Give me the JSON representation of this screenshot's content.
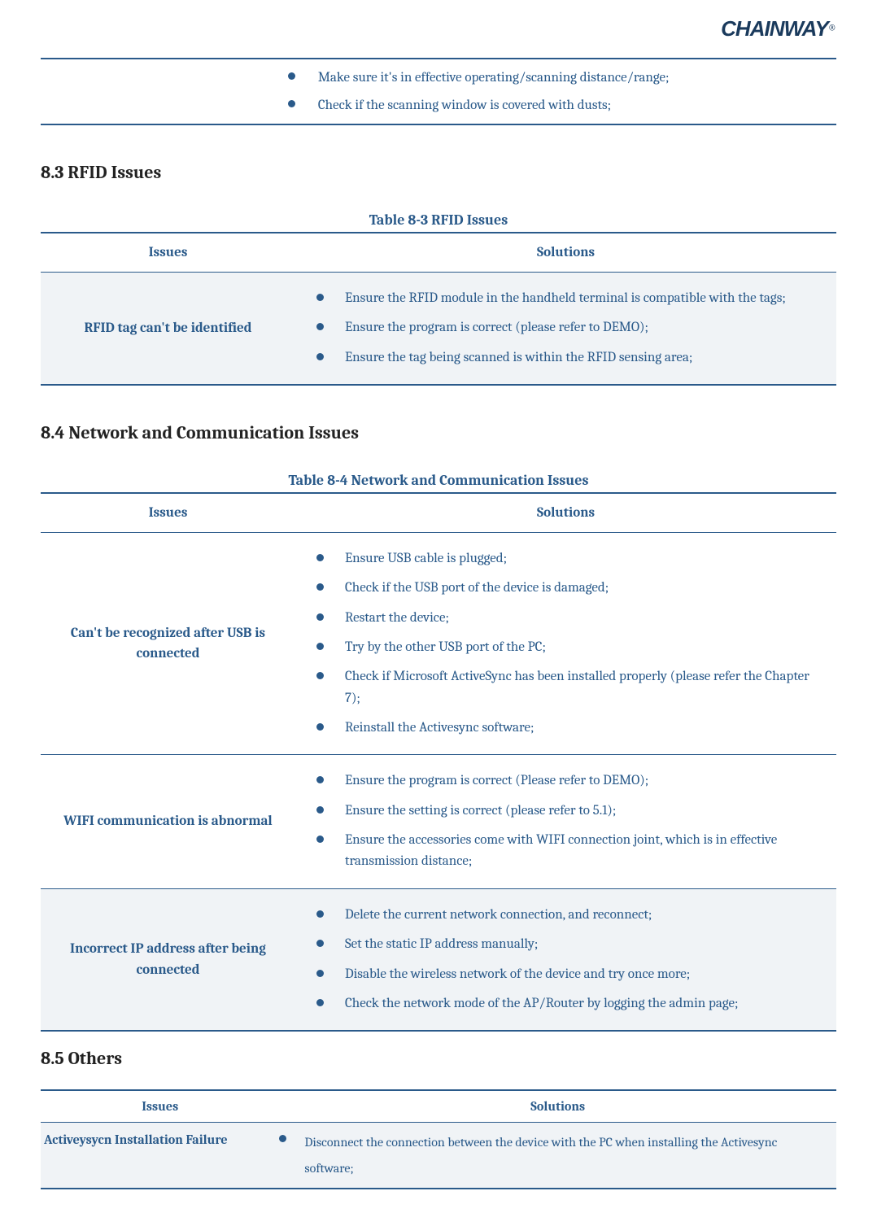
{
  "brand": {
    "name": "CHAINWAY",
    "registered": "®"
  },
  "top_table": {
    "solutions": [
      "Make sure it's in effective operating/scanning distance/range;",
      "Check if the scanning window is covered with dusts;"
    ]
  },
  "sections": {
    "s83": {
      "heading": "8.3 RFID Issues",
      "caption": "Table 8-3 RFID Issues",
      "columns": {
        "issues": "Issues",
        "solutions": "Solutions"
      },
      "rows": [
        {
          "issue": "RFID tag can't be identified",
          "shaded": true,
          "solutions": [
            "Ensure the RFID module in the handheld terminal is compatible with the tags;",
            "Ensure the program is correct (please refer to DEMO);",
            "Ensure the tag being scanned is within the RFID sensing area;"
          ]
        }
      ]
    },
    "s84": {
      "heading": "8.4 Network and Communication Issues",
      "caption": "Table 8-4 Network and Communication Issues",
      "columns": {
        "issues": "Issues",
        "solutions": "Solutions"
      },
      "rows": [
        {
          "issue": "Can't be recognized after USB is connected",
          "shaded": false,
          "solutions": [
            "Ensure USB cable is plugged;",
            "Check if the USB port of the device is damaged;",
            "Restart the device;",
            "Try by the other USB port of the PC;",
            "Check if Microsoft ActiveSync has been installed properly (please refer the Chapter 7);",
            "Reinstall the Activesync software;"
          ]
        },
        {
          "issue": "WIFI communication is abnormal",
          "shaded": false,
          "solutions": [
            "Ensure the program is correct (Please refer to DEMO);",
            "Ensure the setting is correct (please refer to 5.1);",
            "Ensure the accessories come with WIFI connection joint, which is in effective transmission distance;"
          ]
        },
        {
          "issue": "Incorrect IP address after being connected",
          "shaded": true,
          "solutions": [
            "Delete the current network connection, and reconnect;",
            "Set the static IP address manually;",
            "Disable the wireless network of the device and try once more;",
            "Check the network mode of the AP/Router by logging the admin page;"
          ]
        }
      ]
    },
    "s85": {
      "heading": "8.5 Others",
      "columns": {
        "issues": "Issues",
        "solutions": "Solutions"
      },
      "rows": [
        {
          "issue": "Activeysycn Installation Failure",
          "solution": "Disconnect the connection between the device with the PC when installing the Activesync software;"
        }
      ]
    }
  }
}
